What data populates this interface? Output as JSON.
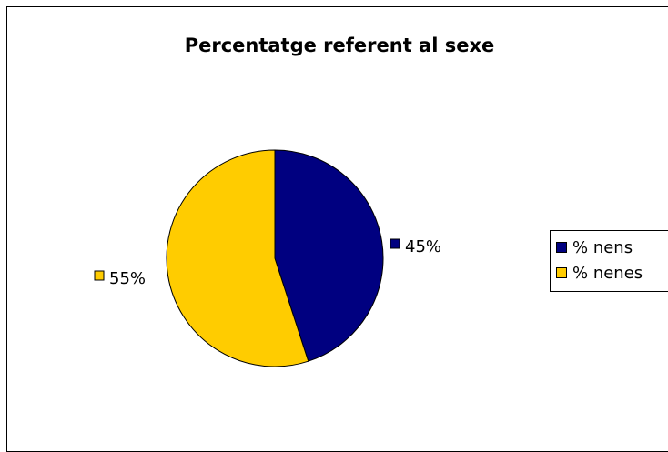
{
  "chart_data": {
    "type": "pie",
    "title": "Percentatge referent al sexe",
    "slices": [
      {
        "name": "% nens",
        "value": 45,
        "label": "45%",
        "color": "#000080"
      },
      {
        "name": "% nenes",
        "value": 55,
        "label": "55%",
        "color": "#FFCC00"
      }
    ],
    "legend_position": "right"
  }
}
